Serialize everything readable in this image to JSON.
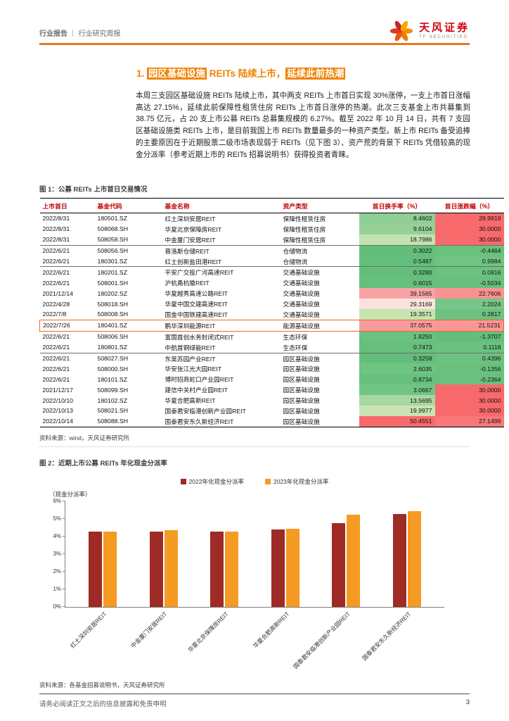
{
  "header": {
    "category": "行业报告",
    "separator": "｜",
    "subtitle": "行业研究周报",
    "brand_name": "天风证券",
    "brand_sub": "TF SECURITIES",
    "accent_color": "#E87722"
  },
  "section_title": {
    "prefix": "1. ",
    "seg1": "园区基础设施",
    "seg2": " REITs 陆续上市，",
    "seg3": "延续此前热潮"
  },
  "body_text": "本周三支园区基础设施 REITs 陆续上市，其中两支 REITs 上市首日实现 30%涨停，一支上市首日涨幅高达 27.15%，延续此前保障性租赁住房 REITs 上市首日涨停的热潮。此次三支基金上市共募集到 38.75 亿元，占 20 支上市公募 REITs 总募集规模的 6.27%。截至 2022 年 10 月 14 日，共有 7 支园区基础设施类 REITs 上市，是目前我国上市 REITs 数量最多的一种资产类型。新上市 REITs 备受追捧的主要原因在于近期股票二级市场表现弱于 REITs（见下图 3）、资产荒的背景下 REITs 凭借较高的现金分派率（参考近期上市的 REITs 招募说明书）获得投资者青睐。",
  "table": {
    "caption": "图 1：公募 REITs 上市首日交易情况",
    "columns": [
      "上市首日",
      "基金代码",
      "基金名称",
      "资产类型",
      "首日换手率（%）",
      "首日涨跌幅（%）"
    ],
    "rows": [
      {
        "date": "2022/8/31",
        "code": "180501.SZ",
        "name": "红土深圳安居REIT",
        "type": "保障性租赁住房",
        "turnover": "8.4602",
        "turnover_bg": "#8FCE94",
        "change": "29.9919",
        "change_bg": "#F86A6C",
        "group_end": false,
        "highlight": false
      },
      {
        "date": "2022/8/31",
        "code": "508068.SH",
        "name": "华夏北京保障房REIT",
        "type": "保障性租赁住房",
        "turnover": "9.6104",
        "turnover_bg": "#95D097",
        "change": "30.0000",
        "change_bg": "#F8696B",
        "group_end": false,
        "highlight": false
      },
      {
        "date": "2022/8/31",
        "code": "508058.SH",
        "name": "中金厦门安居REIT",
        "type": "保障性租赁住房",
        "turnover": "18.7986",
        "turnover_bg": "#C2E2AE",
        "change": "30.0000",
        "change_bg": "#F8696B",
        "group_end": true,
        "highlight": false
      },
      {
        "date": "2022/6/21",
        "code": "508056.SH",
        "name": "普洛斯仓储REIT",
        "type": "仓储物流",
        "turnover": "0.3022",
        "turnover_bg": "#63BE7B",
        "change": "-0.4464",
        "change_bg": "#69C17E",
        "group_end": false,
        "highlight": false
      },
      {
        "date": "2022/6/21",
        "code": "180301.SZ",
        "name": "红土创新盐田港REIT",
        "type": "仓储物流",
        "turnover": "0.5487",
        "turnover_bg": "#65BF7C",
        "change": "0.9984",
        "change_bg": "#70C382",
        "group_end": true,
        "highlight": false
      },
      {
        "date": "2022/6/21",
        "code": "180201.SZ",
        "name": "平安广交投广河高速REIT",
        "type": "交通基础设施",
        "turnover": "0.3280",
        "turnover_bg": "#63BE7B",
        "change": "0.0916",
        "change_bg": "#6BC280",
        "group_end": false,
        "highlight": false
      },
      {
        "date": "2022/6/21",
        "code": "508001.SH",
        "name": "沪杭甬杭徽REIT",
        "type": "交通基础设施",
        "turnover": "0.6015",
        "turnover_bg": "#66BF7D",
        "change": "-0.5034",
        "change_bg": "#68C07D",
        "group_end": false,
        "highlight": false
      },
      {
        "date": "2021/12/14",
        "code": "180202.SZ",
        "name": "华夏越秀高速公路REIT",
        "type": "交通基础设施",
        "turnover": "39.1565",
        "turnover_bg": "#F9A3A4",
        "change": "22.7606",
        "change_bg": "#FA9193",
        "group_end": false,
        "highlight": false
      },
      {
        "date": "2022/4/28",
        "code": "508018.SH",
        "name": "华夏中国交建高速REIT",
        "type": "交通基础设施",
        "turnover": "29.3169",
        "turnover_bg": "#FBE2DE",
        "change": "2.2024",
        "change_bg": "#77C687",
        "group_end": false,
        "highlight": false
      },
      {
        "date": "2022/7/8",
        "code": "508008.SH",
        "name": "国金中国铁建高速REIT",
        "type": "交通基础设施",
        "turnover": "19.3571",
        "turnover_bg": "#C6E3B0",
        "change": "0.2817",
        "change_bg": "#6CC281",
        "group_end": true,
        "highlight": false
      },
      {
        "date": "2022/7/26",
        "code": "180401.SZ",
        "name": "鹏华深圳能源REIT",
        "type": "能源基础设施",
        "turnover": "37.0575",
        "turnover_bg": "#F99B9D",
        "change": "21.5231",
        "change_bg": "#FA9698",
        "group_end": true,
        "highlight": true
      },
      {
        "date": "2022/6/21",
        "code": "508006.SH",
        "name": "富国首创水务封闭式REIT",
        "type": "生态环保",
        "turnover": "1.8250",
        "turnover_bg": "#6AC180",
        "change": "-1.3707",
        "change_bg": "#63BE7B",
        "group_end": false,
        "highlight": false
      },
      {
        "date": "2022/6/21",
        "code": "180801.SZ",
        "name": "中航首钢绿能REIT",
        "type": "生态环保",
        "turnover": "0.7473",
        "turnover_bg": "#66BF7D",
        "change": "0.1118",
        "change_bg": "#6BC280",
        "group_end": true,
        "highlight": false
      },
      {
        "date": "2022/6/21",
        "code": "508027.SH",
        "name": "东吴苏园产业REIT",
        "type": "园区基础设施",
        "turnover": "0.3258",
        "turnover_bg": "#63BE7B",
        "change": "0.4396",
        "change_bg": "#6DC281",
        "group_end": false,
        "highlight": false
      },
      {
        "date": "2022/6/21",
        "code": "508000.SH",
        "name": "华安张江光大园REIT",
        "type": "园区基础设施",
        "turnover": "2.6035",
        "turnover_bg": "#6FC383",
        "change": "-0.1356",
        "change_bg": "#6AC17F",
        "group_end": false,
        "highlight": false
      },
      {
        "date": "2022/6/21",
        "code": "180101.SZ",
        "name": "博时招商蛇口产业园REIT",
        "type": "园区基础设施",
        "turnover": "0.8734",
        "turnover_bg": "#67C07D",
        "change": "-0.2364",
        "change_bg": "#6AC17F",
        "group_end": false,
        "highlight": false
      },
      {
        "date": "2021/12/17",
        "code": "508099.SH",
        "name": "建信中关村产业园REIT",
        "type": "园区基础设施",
        "turnover": "3.0667",
        "turnover_bg": "#71C484",
        "change": "30.0000",
        "change_bg": "#F8696B",
        "group_end": false,
        "highlight": false
      },
      {
        "date": "2022/10/10",
        "code": "180102.SZ",
        "name": "华夏合肥高新REIT",
        "type": "园区基础设施",
        "turnover": "13.5695",
        "turnover_bg": "#A8D8A1",
        "change": "30.0000",
        "change_bg": "#F8696B",
        "group_end": false,
        "highlight": false
      },
      {
        "date": "2022/10/13",
        "code": "508021.SH",
        "name": "国泰君安临港创新产业园REIT",
        "type": "园区基础设施",
        "turnover": "19.9977",
        "turnover_bg": "#C9E4B2",
        "change": "30.0000",
        "change_bg": "#F8696B",
        "group_end": false,
        "highlight": false
      },
      {
        "date": "2022/10/14",
        "code": "508088.SH",
        "name": "国泰君安东久新经济REIT",
        "type": "园区基础设施",
        "turnover": "50.4551",
        "turnover_bg": "#F8696B",
        "change": "27.1499",
        "change_bg": "#F87779",
        "group_end": true,
        "highlight": false
      }
    ],
    "source": "资料来源：wind，天风证券研究所"
  },
  "chart_data": {
    "type": "bar",
    "title": "图 2：近期上市公募 REITs 年化现金分派率",
    "axis_label": "（现金分派率）",
    "categories": [
      "红土深圳安居REIT",
      "中金厦门安居REIT",
      "华夏北京保障房REIT",
      "华夏合肥高新REIT",
      "国泰君安临港创新产业园REIT",
      "国泰君安东久新经济REIT"
    ],
    "series": [
      {
        "name": "2022年化现金分派率",
        "color": "#9E2B25",
        "values": [
          4.3,
          4.3,
          4.3,
          4.4,
          4.75,
          5.3
        ]
      },
      {
        "name": "2023年化现金分派率",
        "color": "#F59A23",
        "values": [
          4.3,
          4.35,
          4.3,
          4.45,
          5.25,
          5.45
        ]
      }
    ],
    "ylim": [
      0,
      6
    ],
    "yticks": [
      "0%",
      "1%",
      "2%",
      "3%",
      "4%",
      "5%",
      "6%"
    ],
    "grid": false,
    "legend_position": "top",
    "source": "资料来源：各基金招募说明书，天风证券研究所"
  },
  "footer": {
    "disclaimer": "请务必阅读正文之后的信息披露和免责申明",
    "page_number": "3"
  }
}
